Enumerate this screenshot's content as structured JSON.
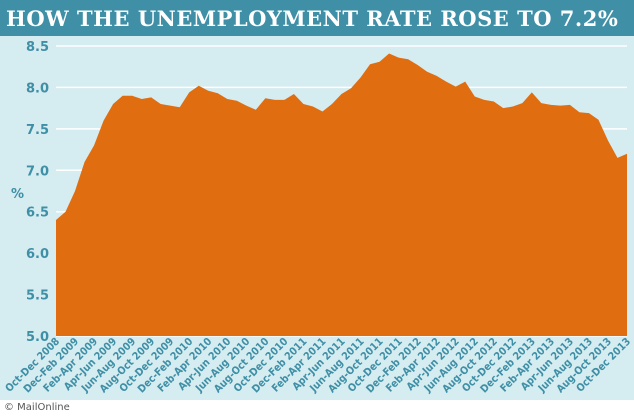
{
  "header": {
    "title": "HOW THE UNEMPLOYMENT RATE ROSE TO 7.2%"
  },
  "footer": {
    "credit": "© MailOnline"
  },
  "colors": {
    "title_bar": "#3f8fa6",
    "background": "#d5ecf0",
    "area_fill": "#e06d10",
    "axis_text": "#3f8fa6",
    "grid": "#ffffff"
  },
  "chart_data": {
    "type": "area",
    "title": "HOW THE UNEMPLOYMENT RATE ROSE TO 7.2%",
    "xlabel": "",
    "ylabel": "%",
    "ylim": [
      5.0,
      8.5
    ],
    "yticks": [
      "5.0",
      "5.5",
      "6.0",
      "6.5",
      "7.0",
      "7.5",
      "8.0",
      "8.5"
    ],
    "grid": true,
    "x": [
      "Oct-Dec 2008",
      "",
      "Dec-Feb 2009",
      "",
      "Feb-Apr 2009",
      "",
      "Apr-Jun 2009",
      "",
      "Jun-Aug 2009",
      "",
      "Aug-Oct 2009",
      "",
      "Oct-Dec 2009",
      "",
      "Dec-Feb 2010",
      "",
      "Feb-Apr 2010",
      "",
      "Apr-Jun 2010",
      "",
      "Jun-Aug 2010",
      "",
      "Aug-Oct 2010",
      "",
      "Oct-Dec 2010",
      "",
      "Dec-Feb 2011",
      "",
      "Feb-Apr 2011",
      "",
      "Apr-Jun 2011",
      "",
      "Jun-Aug 2011",
      "",
      "Aug-Oct 2011",
      "",
      "Oct-Dec 2011",
      "",
      "Dec-Feb 2012",
      "",
      "Feb-Apr 2012",
      "",
      "Apr-Jun 2012",
      "",
      "Jun-Aug 2012",
      "",
      "Aug-Oct 2012",
      "",
      "Oct-Dec 2012",
      "",
      "Dec-Feb 2013",
      "",
      "Feb-Apr 2013",
      "",
      "Apr-Jun 2013",
      "",
      "Jun-Aug 2013",
      "",
      "Aug-Oct 2013",
      "",
      "Oct-Dec 2013"
    ],
    "series": [
      {
        "values": [
          6.4,
          6.5,
          6.75,
          7.1,
          7.3,
          7.6,
          7.8,
          7.9,
          7.9,
          7.86,
          7.88,
          7.8,
          7.78,
          7.76,
          7.94,
          8.02,
          7.96,
          7.93,
          7.86,
          7.84,
          7.78,
          7.73,
          7.87,
          7.85,
          7.85,
          7.92,
          7.8,
          7.77,
          7.71,
          7.8,
          7.92,
          7.99,
          8.12,
          8.28,
          8.31,
          8.41,
          8.36,
          8.34,
          8.27,
          8.19,
          8.14,
          8.07,
          8.01,
          8.07,
          7.89,
          7.85,
          7.83,
          7.75,
          7.77,
          7.81,
          7.94,
          7.81,
          7.79,
          7.78,
          7.79,
          7.7,
          7.69,
          7.61,
          7.36,
          7.15,
          7.2
        ]
      }
    ]
  }
}
